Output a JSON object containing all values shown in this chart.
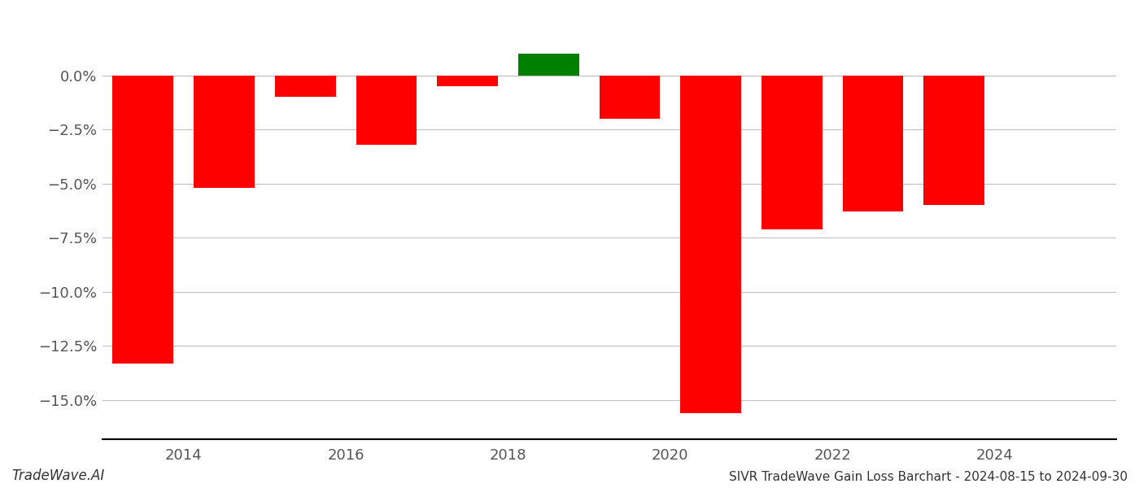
{
  "years": [
    2013.5,
    2014.5,
    2015.5,
    2016.5,
    2017.5,
    2018.5,
    2019.5,
    2020.5,
    2021.5,
    2022.5,
    2023.5
  ],
  "values": [
    -0.133,
    -0.052,
    -0.01,
    -0.032,
    -0.005,
    0.01,
    -0.02,
    -0.156,
    -0.071,
    -0.063,
    -0.06
  ],
  "colors": [
    "#ff0000",
    "#ff0000",
    "#ff0000",
    "#ff0000",
    "#ff0000",
    "#008000",
    "#ff0000",
    "#ff0000",
    "#ff0000",
    "#ff0000",
    "#ff0000"
  ],
  "title": "SIVR TradeWave Gain Loss Barchart - 2024-08-15 to 2024-09-30",
  "watermark": "TradeWave.AI",
  "xlim": [
    2013,
    2025.5
  ],
  "ylim": [
    -0.168,
    0.028
  ],
  "yticks": [
    0.0,
    -0.025,
    -0.05,
    -0.075,
    -0.1,
    -0.125,
    -0.15
  ],
  "xticks": [
    2014,
    2016,
    2018,
    2020,
    2022,
    2024
  ],
  "bar_width": 0.75,
  "background_color": "#ffffff",
  "grid_color": "#c0c0c0",
  "axis_color": "#000000",
  "text_color": "#555555",
  "ytick_labels": [
    "0.0%",
    "−2.5%",
    "−5.0%",
    "−7.5%",
    "−10.0%",
    "−12.5%",
    "−15.0%"
  ]
}
